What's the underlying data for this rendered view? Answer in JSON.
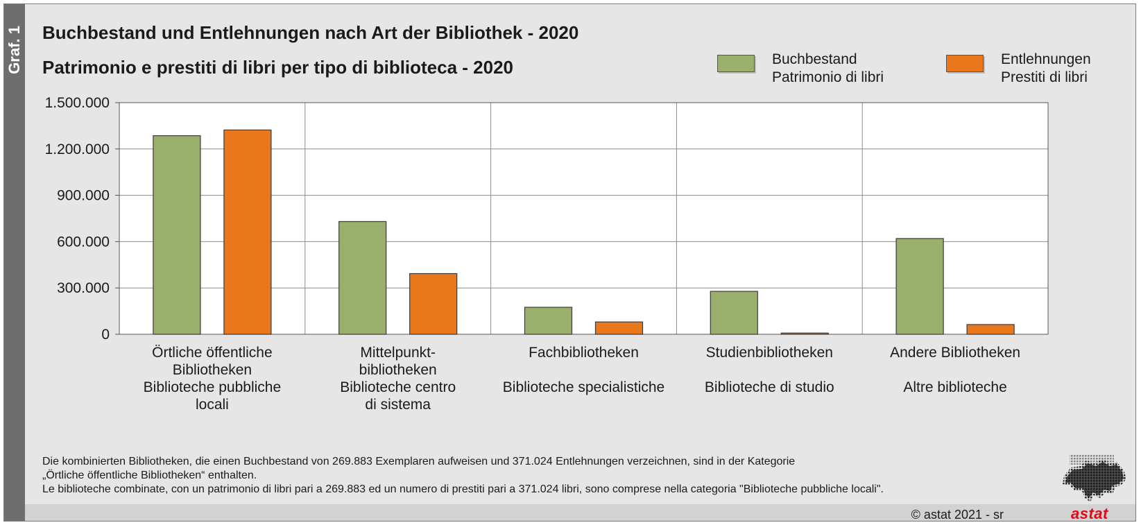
{
  "side_label": "Graf. 1",
  "title_de": "Buchbestand und Entlehnungen nach Art der Bibliothek - 2020",
  "title_it": "Patrimonio e prestiti di libri per tipo di biblioteca - 2020",
  "legend": [
    {
      "line1": "Buchbestand",
      "line2": "Patrimonio di libri",
      "color": "#9aaf6c"
    },
    {
      "line1": "Entlehnungen",
      "line2": "Prestiti di libri",
      "color": "#e8781b"
    }
  ],
  "chart_data": {
    "type": "bar",
    "categories": [
      [
        "Örtliche öffentliche",
        "Bibliotheken",
        "Biblioteche pubbliche",
        "locali"
      ],
      [
        "Mittelpunkt-",
        "bibliotheken",
        "Biblioteche centro",
        "di sistema"
      ],
      [
        "Fachbibliotheken",
        "",
        "Biblioteche specialistiche"
      ],
      [
        "Studienbibliotheken",
        "",
        "Biblioteche di studio"
      ],
      [
        "Andere Bibliotheken",
        "",
        "Altre biblioteche"
      ]
    ],
    "series": [
      {
        "name": "Buchbestand / Patrimonio di libri",
        "color": "#9aaf6c",
        "values": [
          1286000,
          730000,
          175000,
          278000,
          620000
        ]
      },
      {
        "name": "Entlehnungen / Prestiti di libri",
        "color": "#e8781b",
        "values": [
          1323000,
          393000,
          80000,
          8000,
          63000
        ]
      }
    ],
    "ylim": [
      0,
      1500000
    ],
    "yticks": [
      0,
      300000,
      600000,
      900000,
      1200000,
      1500000
    ],
    "ytick_labels": [
      "0",
      "300.000",
      "600.000",
      "900.000",
      "1.200.000",
      "1.500.000"
    ],
    "grid": true,
    "legend_position": "top-right"
  },
  "footnote": {
    "line1": "Die kombinierten Bibliotheken, die einen Buchbestand von 269.883 Exemplaren aufweisen und 371.024 Entlehnungen verzeichnen, sind in der Kategorie",
    "line2": "„Örtliche öffentliche Bibliotheken“ enthalten.",
    "line3": "Le biblioteche combinate, con un patrimonio di libri pari a 269.883 ed un numero di prestiti pari a 371.024 libri, sono comprese nella categoria \"Biblioteche pubbliche locali\"."
  },
  "copyright": "© astat 2021 - sr",
  "logo": "astat"
}
